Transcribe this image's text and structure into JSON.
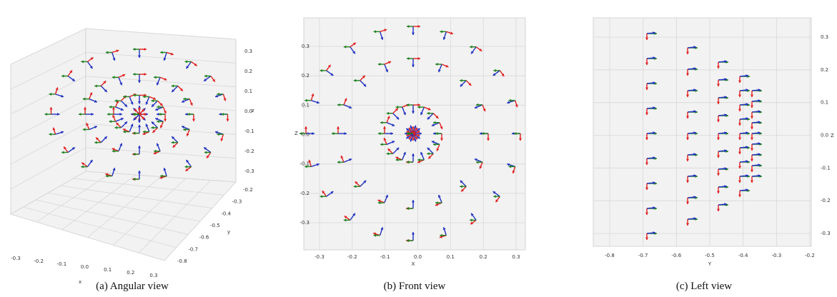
{
  "panels": [
    {
      "caption": "(a) Angular view",
      "x_ticks": [
        "-0.3",
        "-0.2",
        "-0.1",
        "0.0",
        "0.1",
        "0.2",
        "0.3"
      ],
      "x_label": "x",
      "y_ticks": [
        "-0.2",
        "-0.3",
        "-0.4",
        "-0.5",
        "-0.6",
        "-0.7",
        "-0.8"
      ],
      "y_label": "y",
      "z_ticks": [
        "0.3",
        "0.2",
        "0.1",
        "0.0",
        "-0.1",
        "-0.2",
        "-0.3"
      ],
      "z_label": "z"
    },
    {
      "caption": "(b) Front view",
      "x_ticks": [
        "-0.3",
        "-0.2",
        "-0.1",
        "0.0",
        "0.1",
        "0.2",
        "0.3"
      ],
      "x_label": "X",
      "z_ticks": [
        "0.3",
        "0.2",
        "0.1",
        "0.0",
        "-0.1",
        "-0.2",
        "-0.3"
      ],
      "z_label": "Z"
    },
    {
      "caption": "(c) Left view",
      "y_ticks": [
        "-0.8",
        "-0.7",
        "-0.6",
        "-0.5",
        "-0.4",
        "-0.3",
        "-0.2"
      ],
      "y_label": "Y",
      "z_ticks": [
        "0.3",
        "0.2",
        "0.1",
        "0.0",
        "-0.1",
        "-0.2",
        "-0.3"
      ],
      "z_label": "Z"
    }
  ]
}
